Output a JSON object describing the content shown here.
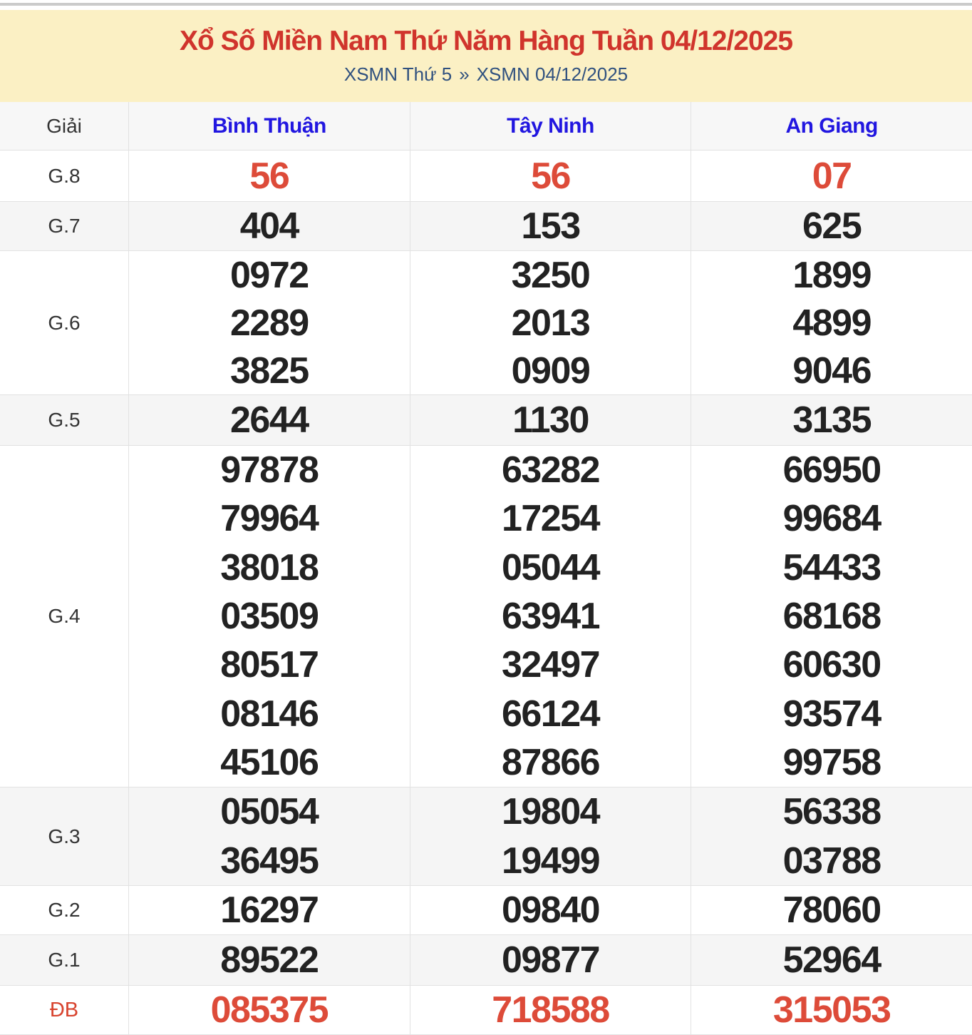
{
  "header": {
    "title": "Xổ Số Miền Nam Thứ Năm Hàng Tuần 04/12/2025",
    "breadcrumb": {
      "left": "XSMN Thứ 5",
      "separator": "»",
      "right": "XSMN 04/12/2025"
    }
  },
  "colors": {
    "header_bg": "#fbf0c4",
    "title_red": "#d0342c",
    "highlight_number_red": "#dd4b39",
    "province_link_blue": "#2116e0",
    "breadcrumb_blue": "#30517f",
    "alt_row_gray": "#f5f5f5",
    "border_gray": "#e2e2e2"
  },
  "table": {
    "prize_header": "Giải",
    "provinces": [
      "Bình Thuận",
      "Tây Ninh",
      "An Giang"
    ],
    "rows": [
      {
        "label": "G.8",
        "highlight": true,
        "values": [
          [
            "56"
          ],
          [
            "56"
          ],
          [
            "07"
          ]
        ]
      },
      {
        "label": "G.7",
        "highlight": false,
        "values": [
          [
            "404"
          ],
          [
            "153"
          ],
          [
            "625"
          ]
        ]
      },
      {
        "label": "G.6",
        "highlight": false,
        "values": [
          [
            "0972",
            "2289",
            "3825"
          ],
          [
            "3250",
            "2013",
            "0909"
          ],
          [
            "1899",
            "4899",
            "9046"
          ]
        ]
      },
      {
        "label": "G.5",
        "highlight": false,
        "values": [
          [
            "2644"
          ],
          [
            "1130"
          ],
          [
            "3135"
          ]
        ]
      },
      {
        "label": "G.4",
        "highlight": false,
        "values": [
          [
            "97878",
            "79964",
            "38018",
            "03509",
            "80517",
            "08146",
            "45106"
          ],
          [
            "63282",
            "17254",
            "05044",
            "63941",
            "32497",
            "66124",
            "87866"
          ],
          [
            "66950",
            "99684",
            "54433",
            "68168",
            "60630",
            "93574",
            "99758"
          ]
        ]
      },
      {
        "label": "G.3",
        "highlight": false,
        "values": [
          [
            "05054",
            "36495"
          ],
          [
            "19804",
            "19499"
          ],
          [
            "56338",
            "03788"
          ]
        ]
      },
      {
        "label": "G.2",
        "highlight": false,
        "values": [
          [
            "16297"
          ],
          [
            "09840"
          ],
          [
            "78060"
          ]
        ]
      },
      {
        "label": "G.1",
        "highlight": false,
        "values": [
          [
            "89522"
          ],
          [
            "09877"
          ],
          [
            "52964"
          ]
        ]
      },
      {
        "label": "ĐB",
        "highlight": true,
        "values": [
          [
            "085375"
          ],
          [
            "718588"
          ],
          [
            "315053"
          ]
        ]
      }
    ]
  }
}
